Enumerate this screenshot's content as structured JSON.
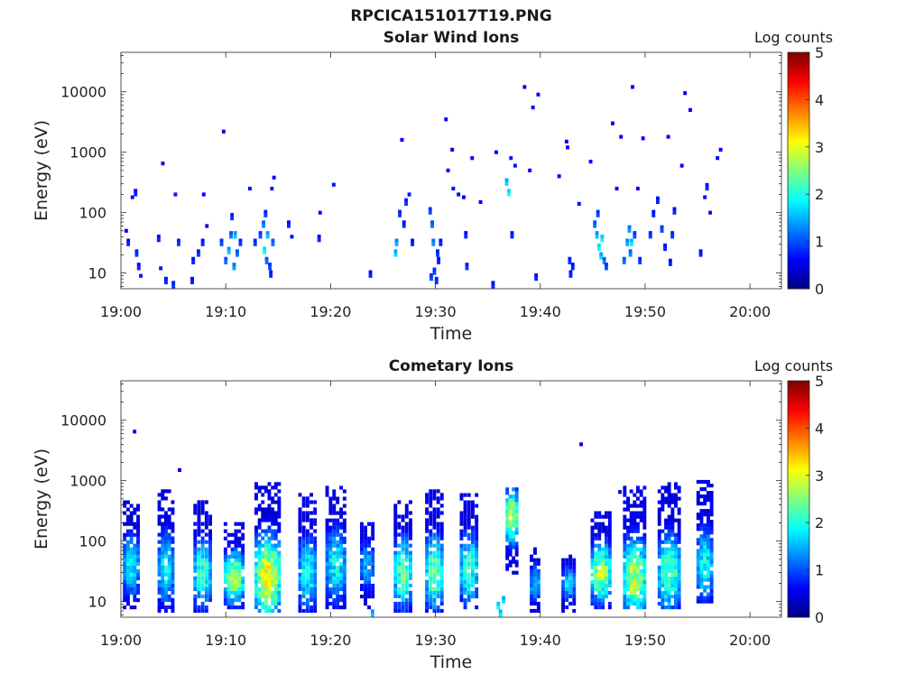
{
  "figure": {
    "title": "RPCICA151017T19.PNG"
  },
  "chart_data": [
    {
      "type": "heatmap",
      "title": "Solar Wind Ions",
      "xlabel": "Time",
      "ylabel": "Energy (eV)",
      "x_ticks": [
        "19:00",
        "19:10",
        "19:20",
        "19:30",
        "19:40",
        "19:50",
        "20:00"
      ],
      "x_range_minutes": [
        0,
        63
      ],
      "y_scale": "log",
      "y_ticks": [
        10,
        100,
        1000,
        10000
      ],
      "y_range": [
        5.5,
        45000
      ],
      "colorbar": {
        "label": "Log counts",
        "range": [
          0,
          5
        ],
        "ticks": [
          0,
          1,
          2,
          3,
          4,
          5
        ]
      },
      "cells": [
        [
          0.5,
          50,
          0.6
        ],
        [
          0.7,
          30,
          0.8
        ],
        [
          1.1,
          180,
          0.7
        ],
        [
          1.4,
          200,
          0.8
        ],
        [
          1.5,
          20,
          0.9
        ],
        [
          1.7,
          12,
          0.8
        ],
        [
          1.9,
          9,
          0.7
        ],
        [
          3.6,
          35,
          0.8
        ],
        [
          3.8,
          12,
          0.7
        ],
        [
          4.0,
          650,
          0.5
        ],
        [
          4.3,
          7,
          0.8
        ],
        [
          5.0,
          6,
          0.9
        ],
        [
          5.2,
          200,
          0.7
        ],
        [
          5.5,
          30,
          0.9
        ],
        [
          6.8,
          7,
          0.8
        ],
        [
          6.9,
          15,
          0.8
        ],
        [
          7.4,
          20,
          0.9
        ],
        [
          7.9,
          200,
          0.6
        ],
        [
          7.8,
          30,
          0.8
        ],
        [
          8.2,
          60,
          0.6
        ],
        [
          9.6,
          30,
          1.0
        ],
        [
          9.8,
          2200,
          0.6
        ],
        [
          10.0,
          15,
          1.2
        ],
        [
          10.3,
          22,
          1.6
        ],
        [
          10.5,
          40,
          1.2
        ],
        [
          10.6,
          80,
          0.9
        ],
        [
          10.9,
          40,
          1.6
        ],
        [
          10.8,
          12,
          1.4
        ],
        [
          11.1,
          20,
          1.2
        ],
        [
          11.4,
          30,
          0.9
        ],
        [
          12.3,
          250,
          0.7
        ],
        [
          12.8,
          30,
          0.9
        ],
        [
          13.3,
          40,
          1.0
        ],
        [
          13.6,
          60,
          1.3
        ],
        [
          13.7,
          22,
          2.0
        ],
        [
          13.9,
          15,
          1.2
        ],
        [
          13.8,
          90,
          0.9
        ],
        [
          14.0,
          40,
          1.6
        ],
        [
          14.2,
          12,
          1.0
        ],
        [
          14.3,
          9,
          0.8
        ],
        [
          14.5,
          30,
          1.2
        ],
        [
          14.6,
          380,
          0.6
        ],
        [
          14.4,
          250,
          0.7
        ],
        [
          16.0,
          60,
          0.8
        ],
        [
          16.3,
          40,
          0.7
        ],
        [
          18.9,
          35,
          0.8
        ],
        [
          19.0,
          100,
          0.7
        ],
        [
          20.3,
          290,
          0.7
        ],
        [
          23.8,
          9,
          0.8
        ],
        [
          26.2,
          20,
          1.7
        ],
        [
          26.3,
          30,
          1.5
        ],
        [
          26.6,
          90,
          0.9
        ],
        [
          26.8,
          1600,
          0.6
        ],
        [
          27.0,
          60,
          0.8
        ],
        [
          27.2,
          140,
          0.9
        ],
        [
          27.5,
          200,
          0.7
        ],
        [
          27.8,
          30,
          0.8
        ],
        [
          29.5,
          100,
          1.0
        ],
        [
          29.7,
          60,
          1.2
        ],
        [
          29.8,
          30,
          1.4
        ],
        [
          29.9,
          10,
          1.0
        ],
        [
          30.1,
          7,
          0.9
        ],
        [
          30.3,
          15,
          0.8
        ],
        [
          30.5,
          30,
          0.8
        ],
        [
          31.0,
          3500,
          0.6
        ],
        [
          31.2,
          500,
          0.6
        ],
        [
          31.6,
          1100,
          0.6
        ],
        [
          31.7,
          250,
          0.7
        ],
        [
          32.2,
          200,
          0.6
        ],
        [
          32.7,
          180,
          0.6
        ],
        [
          32.9,
          40,
          0.8
        ],
        [
          33.0,
          12,
          0.9
        ],
        [
          33.5,
          800,
          0.6
        ],
        [
          34.3,
          150,
          0.6
        ],
        [
          35.5,
          6,
          0.8
        ],
        [
          35.8,
          1000,
          0.6
        ],
        [
          36.8,
          300,
          1.7
        ],
        [
          37.0,
          200,
          2.0
        ],
        [
          37.2,
          800,
          0.7
        ],
        [
          37.3,
          40,
          0.8
        ],
        [
          37.6,
          600,
          0.7
        ],
        [
          38.5,
          12000,
          0.6
        ],
        [
          39.0,
          500,
          0.6
        ],
        [
          39.3,
          5500,
          0.6
        ],
        [
          39.8,
          9000,
          0.6
        ],
        [
          39.6,
          8,
          0.8
        ],
        [
          41.8,
          400,
          0.6
        ],
        [
          42.5,
          1500,
          0.6
        ],
        [
          42.6,
          1200,
          0.6
        ],
        [
          42.9,
          9,
          0.8
        ],
        [
          42.8,
          15,
          0.9
        ],
        [
          43.1,
          12,
          0.8
        ],
        [
          43.7,
          140,
          0.7
        ],
        [
          44.8,
          700,
          0.6
        ],
        [
          45.2,
          60,
          1.2
        ],
        [
          45.4,
          40,
          1.6
        ],
        [
          45.6,
          25,
          2.0
        ],
        [
          45.8,
          18,
          1.7
        ],
        [
          46.1,
          15,
          1.3
        ],
        [
          45.5,
          90,
          1.0
        ],
        [
          46.3,
          12,
          1.0
        ],
        [
          46.9,
          3000,
          0.6
        ],
        [
          47.3,
          250,
          0.6
        ],
        [
          47.7,
          1800,
          0.6
        ],
        [
          48.0,
          15,
          1.2
        ],
        [
          48.3,
          30,
          1.5
        ],
        [
          48.5,
          50,
          1.4
        ],
        [
          48.8,
          12000,
          0.6
        ],
        [
          48.6,
          20,
          1.3
        ],
        [
          49.0,
          40,
          1.0
        ],
        [
          49.3,
          250,
          0.6
        ],
        [
          49.5,
          15,
          0.9
        ],
        [
          49.8,
          1700,
          0.6
        ],
        [
          50.5,
          40,
          0.9
        ],
        [
          50.8,
          90,
          0.8
        ],
        [
          51.2,
          150,
          0.8
        ],
        [
          51.6,
          50,
          1.0
        ],
        [
          51.9,
          25,
          0.8
        ],
        [
          52.2,
          1800,
          0.6
        ],
        [
          52.4,
          14,
          0.8
        ],
        [
          52.6,
          40,
          0.9
        ],
        [
          52.8,
          100,
          0.8
        ],
        [
          53.5,
          600,
          0.6
        ],
        [
          53.8,
          9500,
          0.6
        ],
        [
          54.3,
          5000,
          0.6
        ],
        [
          55.3,
          20,
          0.8
        ],
        [
          55.7,
          180,
          0.7
        ],
        [
          55.9,
          250,
          0.8
        ],
        [
          56.2,
          100,
          0.7
        ],
        [
          56.9,
          800,
          0.6
        ],
        [
          57.2,
          1100,
          0.6
        ],
        [
          29.6,
          8,
          1.0
        ],
        [
          30.2,
          20,
          0.9
        ],
        [
          45.9,
          35,
          1.9
        ],
        [
          48.7,
          30,
          1.8
        ]
      ]
    },
    {
      "type": "heatmap",
      "title": "Cometary Ions",
      "xlabel": "Time",
      "ylabel": "Energy (eV)",
      "x_ticks": [
        "19:00",
        "19:10",
        "19:20",
        "19:30",
        "19:40",
        "19:50",
        "20:00"
      ],
      "x_range_minutes": [
        0,
        63
      ],
      "y_scale": "log",
      "y_ticks": [
        10,
        100,
        1000,
        10000
      ],
      "y_range": [
        5.5,
        45000
      ],
      "colorbar": {
        "label": "Log counts",
        "range": [
          0,
          5
        ],
        "ticks": [
          0,
          1,
          2,
          3,
          4,
          5
        ]
      },
      "bursts": [
        {
          "t": 1.0,
          "w": 1.6,
          "e_lo": 8,
          "e_hi": 450,
          "peak_e": 40,
          "peak": 2.0
        },
        {
          "t": 4.3,
          "w": 1.6,
          "e_lo": 7,
          "e_hi": 700,
          "peak_e": 35,
          "peak": 2.0
        },
        {
          "t": 7.8,
          "w": 1.8,
          "e_lo": 7,
          "e_hi": 500,
          "peak_e": 30,
          "peak": 2.3
        },
        {
          "t": 10.8,
          "w": 2.0,
          "e_lo": 8,
          "e_hi": 200,
          "peak_e": 25,
          "peak": 2.9
        },
        {
          "t": 14.0,
          "w": 2.5,
          "e_lo": 7,
          "e_hi": 1000,
          "peak_e": 25,
          "peak": 3.4
        },
        {
          "t": 17.8,
          "w": 1.8,
          "e_lo": 7,
          "e_hi": 600,
          "peak_e": 30,
          "peak": 2.1
        },
        {
          "t": 20.5,
          "w": 2.0,
          "e_lo": 8,
          "e_hi": 800,
          "peak_e": 40,
          "peak": 2.0
        },
        {
          "t": 23.5,
          "w": 1.4,
          "e_lo": 8,
          "e_hi": 200,
          "peak_e": 40,
          "peak": 1.6
        },
        {
          "t": 26.9,
          "w": 1.8,
          "e_lo": 7,
          "e_hi": 500,
          "peak_e": 30,
          "peak": 2.5
        },
        {
          "t": 29.9,
          "w": 1.8,
          "e_lo": 7,
          "e_hi": 700,
          "peak_e": 30,
          "peak": 2.6
        },
        {
          "t": 33.2,
          "w": 1.8,
          "e_lo": 8,
          "e_hi": 600,
          "peak_e": 35,
          "peak": 2.3
        },
        {
          "t": 37.3,
          "w": 1.2,
          "e_lo": 30,
          "e_hi": 800,
          "peak_e": 250,
          "peak": 3.2
        },
        {
          "t": 39.5,
          "w": 1.0,
          "e_lo": 7,
          "e_hi": 80,
          "peak_e": 20,
          "peak": 1.8
        },
        {
          "t": 42.7,
          "w": 1.4,
          "e_lo": 7,
          "e_hi": 60,
          "peak_e": 20,
          "peak": 1.8
        },
        {
          "t": 45.8,
          "w": 2.0,
          "e_lo": 8,
          "e_hi": 300,
          "peak_e": 30,
          "peak": 2.9
        },
        {
          "t": 49.0,
          "w": 2.2,
          "e_lo": 8,
          "e_hi": 800,
          "peak_e": 25,
          "peak": 3.1
        },
        {
          "t": 52.3,
          "w": 2.2,
          "e_lo": 8,
          "e_hi": 900,
          "peak_e": 30,
          "peak": 2.5
        },
        {
          "t": 55.7,
          "w": 1.6,
          "e_lo": 10,
          "e_hi": 1000,
          "peak_e": 40,
          "peak": 2.1
        }
      ],
      "cells": [
        [
          1.3,
          6500,
          0.6
        ],
        [
          5.6,
          1500,
          0.6
        ],
        [
          43.9,
          4000,
          0.6
        ],
        [
          47.6,
          650,
          0.6
        ],
        [
          36.0,
          8,
          1.9
        ],
        [
          36.2,
          6,
          1.8
        ],
        [
          36.5,
          10,
          1.7
        ],
        [
          24.0,
          6,
          1.6
        ]
      ]
    }
  ]
}
